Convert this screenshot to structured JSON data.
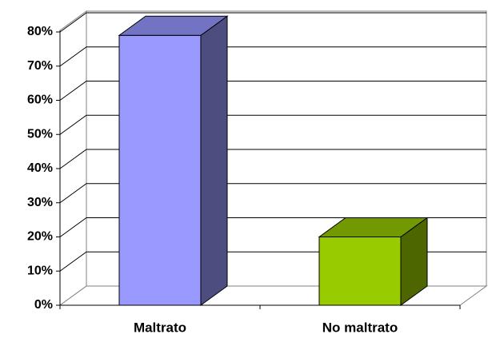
{
  "chart_data": {
    "type": "bar3d",
    "categories": [
      "Maltrato",
      "No maltrato"
    ],
    "values": [
      79,
      20
    ],
    "colors": [
      {
        "front": "#9999ff",
        "top": "#7373c4",
        "side": "#4d4d80"
      },
      {
        "front": "#99cc00",
        "top": "#739900",
        "side": "#4d6600"
      }
    ],
    "ylim": [
      0,
      80
    ],
    "yticks": [
      {
        "value": 0,
        "label": "0%"
      },
      {
        "value": 10,
        "label": "10%"
      },
      {
        "value": 20,
        "label": "20%"
      },
      {
        "value": 30,
        "label": "30%"
      },
      {
        "value": 40,
        "label": "40%"
      },
      {
        "value": 50,
        "label": "50%"
      },
      {
        "value": 60,
        "label": "60%"
      },
      {
        "value": 70,
        "label": "70%"
      },
      {
        "value": 80,
        "label": "80%"
      }
    ],
    "grid": true
  }
}
